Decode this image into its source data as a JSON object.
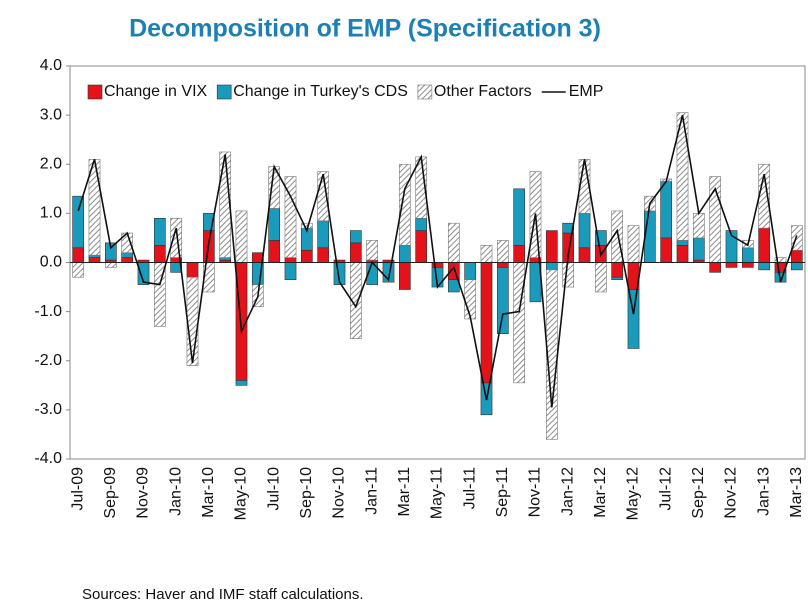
{
  "chart_data": {
    "type": "bar",
    "title": "Decomposition of EMP (Specification 3)",
    "source": "Sources: Haver and IMF staff calculations.",
    "categories": [
      "Jul-09",
      null,
      "Sep-09",
      null,
      "Nov-09",
      null,
      "Jan-10",
      null,
      "Mar-10",
      null,
      "May-10",
      null,
      "Jul-10",
      null,
      "Sep-10",
      null,
      "Nov-10",
      null,
      "Jan-11",
      null,
      "Mar-11",
      null,
      "May-11",
      null,
      "Jul-11",
      null,
      "Sep-11",
      null,
      "Nov-11",
      null,
      "Jan-12",
      null,
      "Mar-12",
      null,
      "May-12",
      null,
      "Jul-12",
      null,
      "Sep-12",
      null,
      "Nov-12",
      null,
      "Jan-13",
      null,
      "Mar-13"
    ],
    "series": [
      {
        "name": "Change in VIX",
        "color": "#e3121b",
        "type": "bar",
        "values": [
          0.3,
          0.1,
          0.05,
          0.1,
          0.05,
          0.35,
          0.1,
          -0.3,
          0.65,
          0.05,
          -2.4,
          0.2,
          0.45,
          0.1,
          0.25,
          0.3,
          0.05,
          0.4,
          0.05,
          0.05,
          -0.55,
          0.65,
          -0.1,
          -0.35,
          0,
          -2.45,
          -0.1,
          0.35,
          0.1,
          0.65,
          0.6,
          0.3,
          0.35,
          -0.3,
          -0.55,
          0,
          0.5,
          0.35,
          0.05,
          -0.2,
          -0.1,
          -0.1,
          0.7,
          -0.2,
          0.25
        ]
      },
      {
        "name": "Change in Turkey's CDS",
        "color": "#1a9bbb",
        "type": "bar",
        "values": [
          1.05,
          0.05,
          0.35,
          0.1,
          -0.45,
          0.55,
          -0.2,
          0,
          0.35,
          0.05,
          -0.1,
          -0.45,
          0.65,
          -0.35,
          0.45,
          0.55,
          -0.45,
          0.25,
          -0.45,
          -0.4,
          0.35,
          0.25,
          -0.4,
          -0.25,
          -0.35,
          -0.65,
          -1.35,
          1.15,
          -0.8,
          -0.15,
          0.2,
          0.7,
          0.3,
          -0.05,
          -1.2,
          1.05,
          1.15,
          0.1,
          0.45,
          0,
          0.65,
          0.3,
          -0.15,
          -0.2,
          -0.15
        ]
      },
      {
        "name": "Other Factors",
        "color": "#8c8c8c",
        "type": "bar",
        "values": [
          -0.3,
          1.95,
          -0.1,
          0.4,
          0,
          -1.3,
          0.8,
          -1.8,
          -0.6,
          2.15,
          1.05,
          -0.45,
          0.85,
          1.65,
          0.1,
          1.0,
          0,
          -1.55,
          0.4,
          0,
          1.65,
          1.25,
          0,
          0.8,
          -0.8,
          0.35,
          0.45,
          -2.45,
          1.75,
          -3.45,
          -0.5,
          1.1,
          -0.6,
          1.05,
          0.75,
          0.3,
          0.05,
          2.6,
          0.5,
          1.75,
          0,
          0.15,
          1.3,
          0.1,
          0.5
        ]
      },
      {
        "name": "EMP",
        "color": "#111111",
        "type": "line",
        "values": [
          1.05,
          2.1,
          0.3,
          0.6,
          -0.4,
          -0.45,
          0.7,
          -2.05,
          0.4,
          2.2,
          -1.4,
          -0.7,
          1.95,
          1.35,
          0.65,
          1.8,
          -0.4,
          -0.9,
          0.0,
          -0.35,
          1.5,
          2.15,
          -0.5,
          -0.1,
          -1.1,
          -2.8,
          -1.05,
          -1.0,
          1.0,
          -2.95,
          0.15,
          2.1,
          0.15,
          0.65,
          -1.05,
          1.2,
          1.65,
          3.0,
          1.0,
          1.5,
          0.55,
          0.35,
          1.8,
          -0.4,
          0.55
        ]
      }
    ],
    "ylim": [
      -4,
      4
    ],
    "yticks": [
      {
        "value": -4,
        "label": "-4.0"
      },
      {
        "value": -3,
        "label": "-3.0"
      },
      {
        "value": -2,
        "label": "-2.0"
      },
      {
        "value": -1,
        "label": "-1.0"
      },
      {
        "value": 0,
        "label": "0.0"
      },
      {
        "value": 1,
        "label": "1.0"
      },
      {
        "value": 2,
        "label": "2.0"
      },
      {
        "value": 3,
        "label": "3.0"
      },
      {
        "value": 4,
        "label": "4.0"
      }
    ],
    "legend": "top",
    "grid": false
  }
}
